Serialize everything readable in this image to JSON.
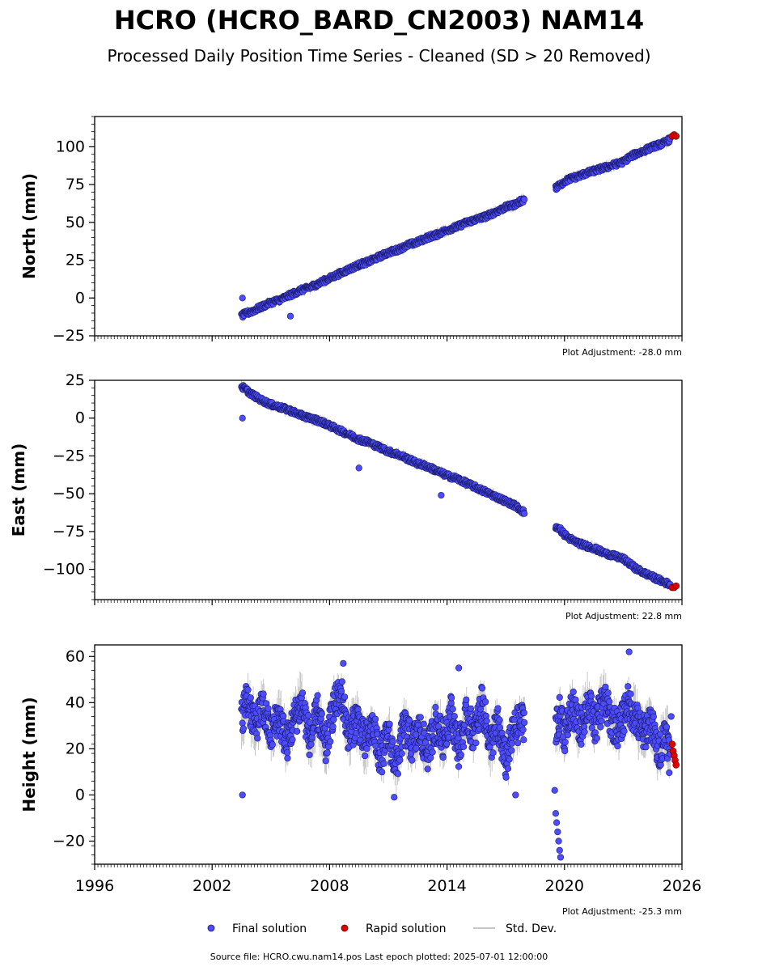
{
  "figure": {
    "title": "HCRO (HCRO_BARD_CN2003) NAM14",
    "subtitle": "Processed Daily Position Time Series - Cleaned (SD > 20 Removed)",
    "source": "Source file: HCRO.cwu.nam14.pos  Last epoch plotted: 2025-07-01 12:00:00"
  },
  "colors": {
    "final": "#4d4dff",
    "final_edge": "#1a1a66",
    "rapid": "#e00000",
    "std": "#c8c8c8",
    "axis": "#000000"
  },
  "chart_data": [
    {
      "type": "scatter",
      "ylabel": "North (mm)",
      "xlim": [
        1996,
        2026
      ],
      "ylim": [
        -25,
        120
      ],
      "yticks": [
        -25,
        0,
        25,
        50,
        75,
        100
      ],
      "ytick_labels": [
        "−25",
        "0",
        "25",
        "50",
        "75",
        "100"
      ],
      "adjustment": "Plot Adjustment: -28.0 mm",
      "series": [
        {
          "name": "Final solution",
          "x": [
            2003.5,
            2003.6,
            2003.8,
            2004.0,
            2004.5,
            2005.0,
            2005.5,
            2006.0,
            2006.5,
            2007.0,
            2007.5,
            2008.0,
            2008.5,
            2009.0,
            2009.5,
            2010.0,
            2010.5,
            2011.0,
            2011.5,
            2012.0,
            2012.5,
            2013.0,
            2013.5,
            2014.0,
            2014.5,
            2015.0,
            2015.5,
            2016.0,
            2016.5,
            2017.0,
            2017.5,
            2017.9,
            2019.6,
            2019.8,
            2020.0,
            2020.3,
            2020.6,
            2021.0,
            2021.5,
            2022.0,
            2022.5,
            2023.0,
            2023.3,
            2023.6,
            2024.0,
            2024.5,
            2025.0,
            2025.4
          ],
          "y": [
            -12,
            -11,
            -10,
            -9,
            -6,
            -3,
            -1,
            2,
            5,
            7,
            10,
            13,
            16,
            19,
            22,
            24,
            27,
            30,
            32,
            35,
            37,
            40,
            42,
            45,
            47,
            50,
            52,
            54,
            57,
            60,
            62,
            65,
            73,
            75,
            77,
            79,
            80,
            82,
            84,
            86,
            88,
            90,
            93,
            95,
            97,
            100,
            102,
            105
          ]
        },
        {
          "name": "Rapid solution",
          "x": [
            2025.5,
            2025.6,
            2025.7
          ],
          "y": [
            107,
            108,
            107
          ]
        }
      ],
      "outliers": {
        "x": [
          2003.55,
          2006.0
        ],
        "y": [
          0,
          -12
        ]
      }
    },
    {
      "type": "scatter",
      "ylabel": "East (mm)",
      "xlim": [
        1996,
        2026
      ],
      "ylim": [
        -120,
        25
      ],
      "yticks": [
        -100,
        -75,
        -50,
        -25,
        0,
        25
      ],
      "ytick_labels": [
        "−100",
        "−75",
        "−50",
        "−25",
        "0",
        "25"
      ],
      "adjustment": "Plot Adjustment: 22.8 mm",
      "series": [
        {
          "name": "Final solution",
          "x": [
            2003.5,
            2003.6,
            2003.8,
            2004.0,
            2004.5,
            2005.0,
            2005.5,
            2006.0,
            2006.5,
            2007.0,
            2007.5,
            2008.0,
            2008.5,
            2009.0,
            2009.5,
            2010.0,
            2010.5,
            2011.0,
            2011.5,
            2012.0,
            2012.5,
            2013.0,
            2013.5,
            2014.0,
            2014.5,
            2015.0,
            2015.5,
            2016.0,
            2016.5,
            2017.0,
            2017.5,
            2017.9,
            2019.6,
            2019.8,
            2020.0,
            2020.3,
            2020.6,
            2021.0,
            2021.5,
            2022.0,
            2022.5,
            2023.0,
            2023.3,
            2023.6,
            2024.0,
            2024.5,
            2025.0,
            2025.4
          ],
          "y": [
            21,
            20,
            18,
            16,
            12,
            9,
            7,
            5,
            2,
            0,
            -2,
            -5,
            -8,
            -11,
            -14,
            -16,
            -19,
            -22,
            -24,
            -27,
            -30,
            -32,
            -35,
            -38,
            -40,
            -43,
            -46,
            -49,
            -52,
            -55,
            -58,
            -62,
            -72,
            -74,
            -77,
            -80,
            -82,
            -84,
            -86,
            -89,
            -91,
            -93,
            -96,
            -99,
            -102,
            -105,
            -108,
            -110
          ]
        },
        {
          "name": "Rapid solution",
          "x": [
            2025.5,
            2025.6,
            2025.7
          ],
          "y": [
            -112,
            -112,
            -111
          ]
        }
      ],
      "outliers": {
        "x": [
          2003.55,
          2009.5,
          2013.7
        ],
        "y": [
          0,
          -33,
          -51
        ]
      }
    },
    {
      "type": "scatter",
      "ylabel": "Height (mm)",
      "xlim": [
        1996,
        2026
      ],
      "ylim": [
        -30,
        65
      ],
      "yticks": [
        -20,
        0,
        20,
        40,
        60
      ],
      "ytick_labels": [
        "−20",
        "0",
        "20",
        "40",
        "60"
      ],
      "adjustment": "Plot Adjustment: -25.3 mm",
      "xticks": [
        1996,
        2002,
        2008,
        2014,
        2020,
        2026
      ],
      "xtick_labels": [
        "1996",
        "2002",
        "2008",
        "2014",
        "2020",
        "2026"
      ],
      "series": [
        {
          "name": "Final solution",
          "x": [
            2003.5,
            2003.8,
            2004.2,
            2004.6,
            2005.0,
            2005.4,
            2005.8,
            2006.2,
            2006.6,
            2007.0,
            2007.4,
            2007.8,
            2008.2,
            2008.6,
            2009.0,
            2009.4,
            2009.8,
            2010.2,
            2010.6,
            2011.0,
            2011.4,
            2011.8,
            2012.2,
            2012.6,
            2013.0,
            2013.4,
            2013.8,
            2014.2,
            2014.6,
            2015.0,
            2015.4,
            2015.8,
            2016.2,
            2016.6,
            2017.0,
            2017.4,
            2017.8,
            2019.6,
            2019.8,
            2020.0,
            2020.4,
            2020.8,
            2021.2,
            2021.6,
            2022.0,
            2022.4,
            2022.8,
            2023.2,
            2023.6,
            2024.0,
            2024.4,
            2024.8,
            2025.2,
            2025.4
          ],
          "y": [
            34,
            42,
            30,
            38,
            26,
            35,
            22,
            33,
            40,
            24,
            36,
            20,
            38,
            44,
            25,
            34,
            22,
            30,
            16,
            26,
            12,
            30,
            22,
            28,
            18,
            31,
            24,
            36,
            20,
            34,
            26,
            40,
            22,
            30,
            14,
            28,
            32,
            30,
            36,
            26,
            38,
            28,
            40,
            30,
            42,
            32,
            28,
            40,
            34,
            26,
            32,
            18,
            28,
            14
          ]
        },
        {
          "name": "Rapid solution",
          "x": [
            2025.5,
            2025.55,
            2025.6,
            2025.65,
            2025.7
          ],
          "y": [
            22,
            19,
            17,
            15,
            13
          ]
        }
      ],
      "extra_points": {
        "x": [
          2003.55,
          2019.5,
          2019.55,
          2019.6,
          2019.65,
          2019.7,
          2019.75,
          2019.8,
          2014.6,
          2023.3,
          2008.7,
          2011.3,
          2017.5,
          2025.45
        ],
        "y": [
          0,
          2,
          -8,
          -12,
          -16,
          -20,
          -24,
          -27,
          55,
          62,
          57,
          -1,
          0,
          34
        ]
      }
    }
  ],
  "legend": {
    "final_label": "Final solution",
    "rapid_label": "Rapid solution",
    "std_label": "Std. Dev."
  }
}
